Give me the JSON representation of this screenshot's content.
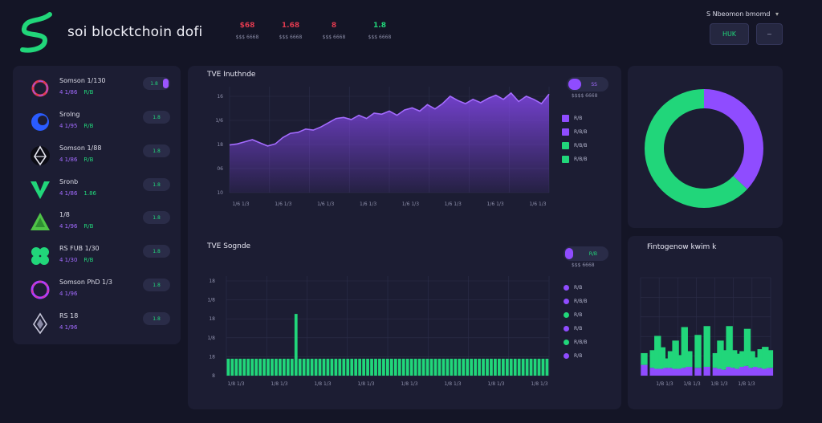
{
  "header": {
    "brand": "soi blocktchoin dofi",
    "stats": [
      {
        "value": "$68",
        "label": "$$$ 6668",
        "color": "#e03a4f"
      },
      {
        "value": "1.68",
        "label": "$$$ 6668",
        "color": "#e03a4f"
      },
      {
        "value": "8",
        "label": "$$$ 6668",
        "color": "#e03a4f"
      },
      {
        "value": "1.8",
        "label": "$$$ 6668",
        "color": "#21d67a"
      }
    ],
    "top_label": "S Nbeomon bmomd",
    "button_1": "HUK",
    "button_2": "~"
  },
  "tokens": [
    {
      "name": "Somson 1/130",
      "sub_a": "4 1/86",
      "sub_b": "R/B",
      "pill": "1.8",
      "icon": "ring-icon",
      "pill_toggle": true
    },
    {
      "name": "Srolng",
      "sub_a": "4 1/95",
      "sub_b": "R/B",
      "pill": "1.8",
      "icon": "crescent-icon",
      "pill_toggle": false
    },
    {
      "name": "Somson 1/88",
      "sub_a": "4 1/86",
      "sub_b": "R/B",
      "pill": "1.8",
      "icon": "eth-icon",
      "pill_toggle": false
    },
    {
      "name": "Sronb",
      "sub_a": "4 1/86",
      "sub_b": "1.86",
      "pill": "1.8",
      "icon": "v-icon",
      "pill_toggle": false
    },
    {
      "name": "1/8",
      "sub_a": "4 1/96",
      "sub_b": "R/B",
      "pill": "1.8",
      "icon": "triangle-icon",
      "pill_toggle": false
    },
    {
      "name": "RS FUB 1/30",
      "sub_a": "4 1/30",
      "sub_b": "R/B",
      "pill": "1.8",
      "icon": "clover-icon",
      "pill_toggle": false
    },
    {
      "name": "Somson PhD 1/3",
      "sub_a": "4 1/96",
      "sub_b": "",
      "pill": "1.8",
      "icon": "hexring-icon",
      "pill_toggle": false
    },
    {
      "name": "RS 18",
      "sub_a": "4 1/96",
      "sub_b": "",
      "pill": "1.8",
      "icon": "diamond-icon",
      "pill_toggle": false
    }
  ],
  "area_panel": {
    "title": "TVE Inuthnde",
    "toggle_label": "SS",
    "caption": "$$$$ 6668",
    "legend": [
      "R/B",
      "R/B/B",
      "R/B/B",
      "R/B/B"
    ]
  },
  "bar_panel": {
    "title": "TVE Sognde",
    "toggle_label": "R/B",
    "caption": "$$$ 6668",
    "legend": [
      "R/B",
      "R/B/B",
      "R/B",
      "R/B",
      "R/B/B",
      "R/B"
    ]
  },
  "stack_panel": {
    "title": "Fintogenow kwim k"
  },
  "colors": {
    "purple": "#8f4cff",
    "green": "#21d67a",
    "red": "#e03a4f"
  },
  "chart_data": [
    {
      "type": "area",
      "title": "TVE Inuthnde",
      "yticks": [
        "16",
        "1/6",
        "18",
        "06",
        "10"
      ],
      "xticks": [
        "1/6 1/3",
        "1/6 1/3",
        "1/6 1/3",
        "1/6 1/3",
        "1/6 1/3",
        "1/6 1/3",
        "1/6 1/3",
        "1/6 1/3"
      ],
      "ylim": [
        0,
        100
      ],
      "values": [
        45,
        46,
        48,
        50,
        47,
        44,
        46,
        52,
        56,
        57,
        60,
        59,
        62,
        66,
        70,
        71,
        69,
        73,
        70,
        75,
        74,
        77,
        73,
        78,
        80,
        77,
        83,
        79,
        84,
        91,
        87,
        84,
        88,
        85,
        89,
        92,
        88,
        94,
        86,
        91,
        88,
        84,
        93
      ],
      "fill_color": "#8f4cff"
    },
    {
      "type": "bar",
      "title": "TVE Sognde",
      "yticks": [
        "18",
        "1/8",
        "18",
        "1/8",
        "18",
        "8"
      ],
      "xticks": [
        "1/8 1/3",
        "1/8 1/3",
        "1/8 1/3",
        "1/8 1/3",
        "1/8 1/3",
        "1/8 1/3",
        "1/8 1/3",
        "1/8 1/3"
      ],
      "ylim": [
        0,
        100
      ],
      "values": [
        17,
        17,
        17,
        17,
        17,
        17,
        17,
        17,
        17,
        17,
        17,
        17,
        17,
        17,
        17,
        17,
        17,
        17,
        17,
        17,
        17,
        17,
        17,
        17,
        17,
        17,
        17,
        17,
        17,
        17,
        17,
        17,
        17,
        17,
        17,
        17,
        17,
        17,
        17,
        17,
        17,
        17,
        17,
        17,
        17,
        17,
        17,
        17,
        17,
        17,
        17,
        17,
        17,
        17,
        17,
        17,
        17,
        17,
        17,
        17,
        17,
        17,
        17,
        17,
        17,
        17,
        17,
        17,
        17,
        17,
        17,
        17,
        17,
        17,
        17,
        17,
        17,
        17,
        17,
        17,
        17
      ],
      "spike_index": 17,
      "spike_value": 62,
      "color": "#21d67a"
    },
    {
      "type": "pie",
      "slices": [
        {
          "value": 37,
          "color": "#8f4cff"
        },
        {
          "value": 63,
          "color": "#21d67a"
        }
      ]
    },
    {
      "type": "bar",
      "title": "Fintogenow kwim k",
      "xticks": [
        "1/B 1/3",
        "1/B 1/3",
        "1/B 1/3",
        "1/B 1/3"
      ],
      "ylim": [
        0,
        100
      ],
      "series": [
        {
          "name": "",
          "values": [
            11,
            6,
            8,
            7,
            7,
            8,
            8,
            7,
            7,
            8,
            9,
            8,
            8,
            9,
            9,
            8,
            8,
            7,
            6,
            9,
            8,
            7,
            9,
            10,
            8,
            9,
            8,
            7,
            8
          ]
        },
        {
          "name": "",
          "values": [
            20,
            16,
            18,
            16,
            22,
            16,
            17,
            18,
            14,
            16,
            16,
            20,
            21,
            14,
            16,
            18,
            15,
            18,
            20,
            16,
            18,
            14,
            16,
            18,
            17,
            16,
            19,
            14,
            18
          ]
        }
      ]
    }
  ]
}
